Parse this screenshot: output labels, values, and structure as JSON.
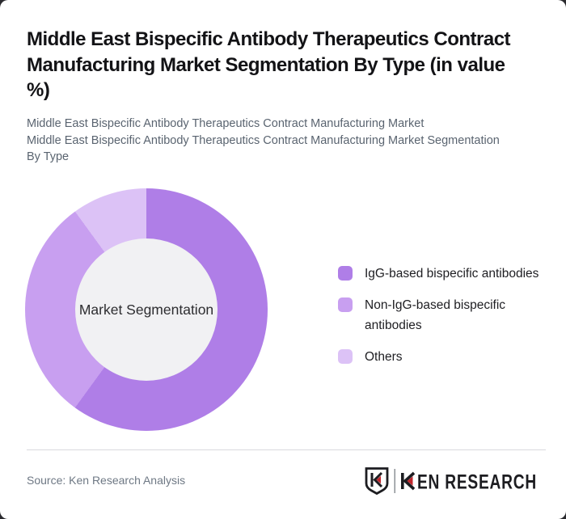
{
  "header": {
    "title": "Middle East Bispecific Antibody Therapeutics Contract Manufacturing Market Segmentation By Type (in value %)",
    "title_lines": [
      "Middle East Bispecific Antibody Therapeutics Contract",
      "Manufacturing Market Segmentation By Type (in value",
      "%)"
    ],
    "subtitle_lines": [
      "Middle East Bispecific Antibody Therapeutics Contract Manufacturing Market",
      "Middle East Bispecific Antibody Therapeutics Contract Manufacturing Market Segmentation",
      "By Type"
    ]
  },
  "chart_data": {
    "type": "pie",
    "style": "donut",
    "title": "Middle East Bispecific Antibody Therapeutics Contract Manufacturing Market Segmentation By Type (in value %)",
    "center_label": "Market Segmentation",
    "start_angle_deg": 0,
    "direction": "clockwise",
    "legend_position": "right",
    "hole_color": "#f1f1f3",
    "segments": [
      {
        "label": "IgG-based bispecific antibodies",
        "value": 60,
        "color": "#af7ee7"
      },
      {
        "label": "Non-IgG-based bispecific antibodies",
        "value": 30,
        "color": "#c89ff0"
      },
      {
        "label": "Others",
        "value": 10,
        "color": "#dcc2f6"
      }
    ]
  },
  "footer": {
    "source_label": "Source: Ken Research Analysis",
    "brand": "KEN RESEARCH",
    "brand_red": "#c1272d",
    "brand_dark": "#1d1d21"
  }
}
